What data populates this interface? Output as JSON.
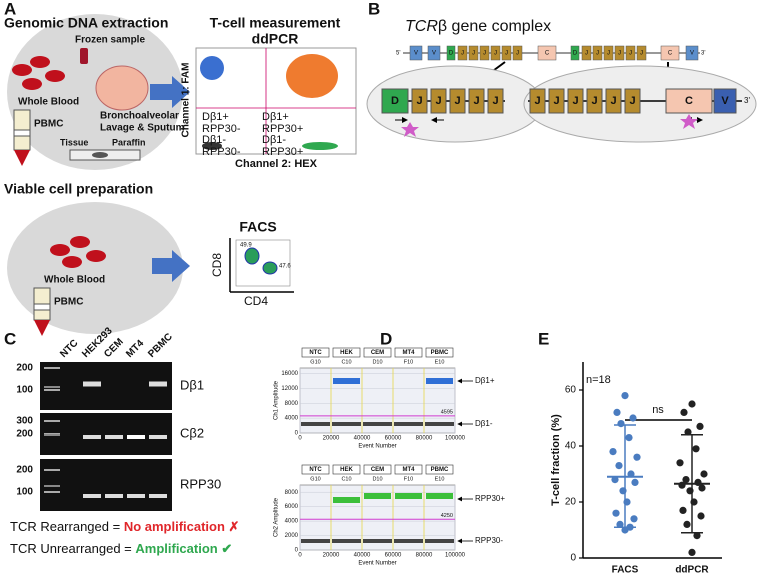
{
  "panel_labels": [
    "A",
    "B",
    "C",
    "D",
    "E"
  ],
  "panel_a": {
    "dna_title": "Genomic DNA extraction",
    "frozen": "Frozen sample",
    "whole_blood": "Whole Blood",
    "pbmc": "PBMC",
    "balf": [
      "Bronchoalveolar",
      "Lavage & Sputum"
    ],
    "tissue": "Tissue",
    "paraffin": "Paraffin",
    "ddpcr_title": [
      "T-cell measurement",
      "ddPCR"
    ],
    "ch1": "Channel 1: FAM",
    "ch2": "Channel 2: HEX",
    "quadrants": [
      [
        "Dβ1+",
        "RPP30-"
      ],
      [
        "Dβ1+",
        "RPP30+"
      ],
      [
        "Dβ1-",
        "RPP30-"
      ],
      [
        "Dβ1-",
        "RPP30+"
      ]
    ],
    "viable_title": "Viable cell preparation",
    "whole_blood_2": "Whole Blood",
    "pbmc_2": "PBMC",
    "facs_title": "FACS",
    "cd8": "CD8",
    "cd4": "CD4",
    "facs_values": [
      49.9,
      47.6
    ]
  },
  "panel_b": {
    "title_italic": "TCR",
    "title_rest": "β gene complex",
    "five": "5'",
    "three": "3'",
    "locus": [
      "V",
      "V",
      "D",
      "J",
      "J",
      "J",
      "J",
      "J",
      "J",
      "C",
      "D",
      "J",
      "J",
      "J",
      "J",
      "J",
      "J",
      "C",
      "V"
    ],
    "left_zoom": [
      "D",
      "J",
      "J",
      "J",
      "J",
      "J"
    ],
    "right_zoom": [
      "J",
      "J",
      "J",
      "J",
      "J",
      "J",
      "C",
      "V"
    ],
    "right_three": "3'"
  },
  "panel_c": {
    "lanes": [
      "NTC",
      "HEK293",
      "CEM",
      "MT4",
      "PBMC"
    ],
    "ladders": [
      [
        200,
        100
      ],
      [
        300,
        200
      ],
      [
        200,
        100
      ]
    ],
    "genes": [
      "Dβ1",
      "Cβ2",
      "RPP30"
    ],
    "rearranged": [
      "TCR Rearranged = ",
      "No amplification ✗"
    ],
    "unrearranged": [
      "TCR Unrearranged = ",
      "Amplification ✔"
    ]
  },
  "panel_d": {
    "plots": [
      {
        "samples": [
          "NTC",
          "HEK",
          "CEM",
          "MT4",
          "PBMC"
        ],
        "wells": [
          "G10",
          "C10",
          "D10",
          "F10",
          "E10"
        ],
        "ylabel": "Ch1 Amplitude",
        "xlabel": "Event Number",
        "ylim": [
          0,
          17500
        ],
        "yticks": [
          0,
          4000,
          8000,
          12000,
          16000
        ],
        "xlim": [
          0,
          100000
        ],
        "xticks": [
          0,
          20000,
          40000,
          60000,
          80000,
          100000
        ],
        "threshold": 4595,
        "cluster_labels": [
          "Dβ1+",
          "Dβ1-"
        ]
      },
      {
        "samples": [
          "NTC",
          "HEK",
          "CEM",
          "MT4",
          "PBMC"
        ],
        "wells": [
          "G10",
          "C10",
          "D10",
          "F10",
          "E10"
        ],
        "ylabel": "Ch2 Amplitude",
        "xlabel": "Event Number",
        "ylim": [
          0,
          9000
        ],
        "yticks": [
          0,
          2000,
          4000,
          6000,
          8000
        ],
        "xlim": [
          0,
          100000
        ],
        "xticks": [
          0,
          20000,
          40000,
          60000,
          80000,
          100000
        ],
        "threshold": 4250,
        "cluster_labels": [
          "RPP30+",
          "RPP30-"
        ]
      }
    ]
  },
  "chart_data": {
    "type": "scatter",
    "ylabel": "T-cell fraction (%)",
    "annotation": "n=18",
    "significance": "ns",
    "categories": [
      "FACS",
      "ddPCR"
    ],
    "ylim": [
      0,
      70
    ],
    "yticks": [
      0,
      20,
      40,
      60
    ],
    "series": [
      {
        "name": "FACS",
        "color": "#4a7cc0",
        "values": [
          58,
          52,
          50,
          48,
          43,
          38,
          36,
          33,
          30,
          28,
          27,
          24,
          20,
          16,
          14,
          12,
          11,
          10
        ],
        "mean": 29,
        "sd_range": [
          11,
          47.5
        ]
      },
      {
        "name": "ddPCR",
        "color": "#222222",
        "values": [
          55,
          52,
          47,
          45,
          39,
          34,
          30,
          28,
          27,
          26,
          25,
          24,
          20,
          17,
          15,
          12,
          8,
          2
        ],
        "mean": 26.5,
        "sd_range": [
          9,
          44
        ]
      }
    ]
  }
}
